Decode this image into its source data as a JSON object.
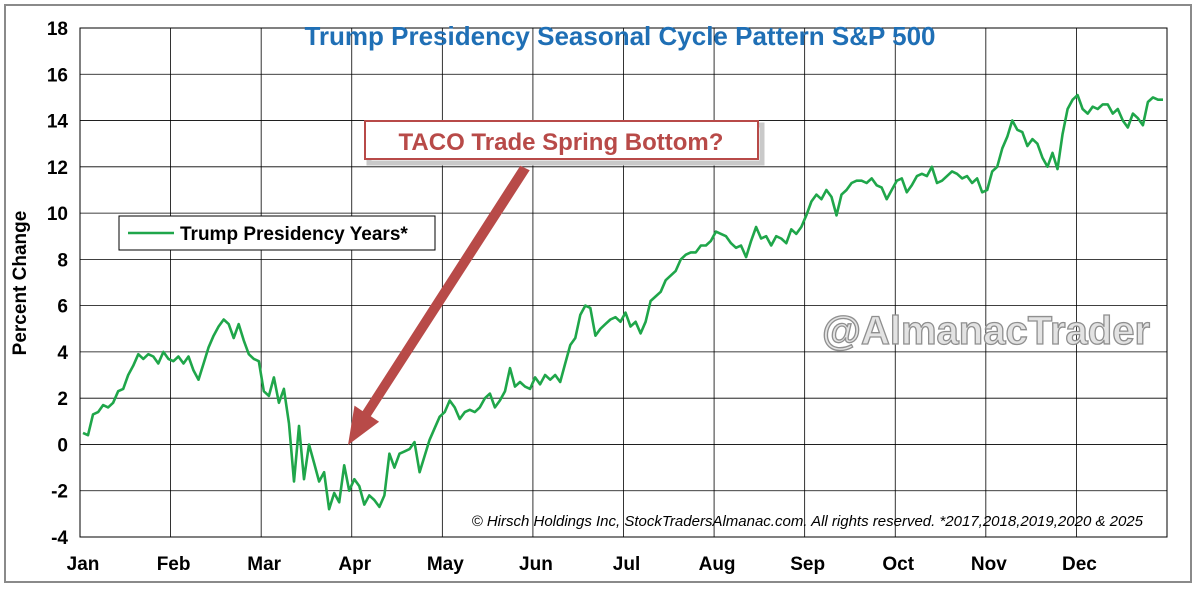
{
  "chart_data": {
    "type": "line",
    "title": "Trump Presidency Seasonal Cycle Pattern S&P 500",
    "ylabel": "Percent Change",
    "xlabel": "",
    "ylim": [
      -4,
      18
    ],
    "yticks": [
      "18",
      "16",
      "14",
      "12",
      "10",
      "8",
      "6",
      "4",
      "2",
      "0",
      "-2",
      "-4"
    ],
    "months": [
      "Jan",
      "Feb",
      "Mar",
      "Apr",
      "May",
      "Jun",
      "Jul",
      "Aug",
      "Sep",
      "Oct",
      "Nov",
      "Dec"
    ],
    "grid": true,
    "legend_position": "upper-left",
    "series": [
      {
        "name": "Trump Presidency Years*",
        "color": "#1fa64a",
        "values": [
          0.5,
          0.4,
          1.3,
          1.4,
          1.7,
          1.6,
          1.8,
          2.3,
          2.4,
          3.0,
          3.4,
          3.9,
          3.7,
          3.9,
          3.8,
          3.5,
          4.0,
          3.7,
          3.6,
          3.8,
          3.5,
          3.8,
          3.2,
          2.8,
          3.5,
          4.2,
          4.7,
          5.1,
          5.4,
          5.2,
          4.6,
          5.2,
          4.5,
          3.9,
          3.7,
          3.6,
          2.3,
          2.1,
          2.9,
          1.8,
          2.4,
          0.9,
          -1.6,
          0.8,
          -1.5,
          0.0,
          -0.8,
          -1.6,
          -1.2,
          -2.8,
          -2.1,
          -2.5,
          -0.9,
          -2.0,
          -1.5,
          -1.8,
          -2.6,
          -2.2,
          -2.4,
          -2.7,
          -2.2,
          -0.4,
          -1.0,
          -0.4,
          -0.3,
          -0.2,
          0.1,
          -1.2,
          -0.5,
          0.2,
          0.7,
          1.2,
          1.4,
          1.9,
          1.6,
          1.1,
          1.4,
          1.5,
          1.4,
          1.6,
          2.0,
          2.2,
          1.6,
          1.9,
          2.3,
          3.3,
          2.5,
          2.7,
          2.5,
          2.4,
          2.9,
          2.6,
          3.0,
          2.8,
          3.0,
          2.7,
          3.5,
          4.3,
          4.6,
          5.6,
          6.0,
          5.9,
          4.7,
          5.0,
          5.2,
          5.4,
          5.5,
          5.3,
          5.7,
          5.1,
          5.3,
          4.8,
          5.3,
          6.2,
          6.4,
          6.6,
          7.1,
          7.3,
          7.5,
          8.0,
          8.2,
          8.3,
          8.3,
          8.6,
          8.6,
          8.8,
          9.2,
          9.1,
          9.0,
          8.7,
          8.5,
          8.6,
          8.1,
          8.8,
          9.4,
          8.9,
          9.0,
          8.6,
          9.0,
          8.9,
          8.7,
          9.3,
          9.1,
          9.4,
          9.9,
          10.5,
          10.8,
          10.6,
          11.0,
          10.7,
          9.9,
          10.8,
          11.0,
          11.3,
          11.4,
          11.4,
          11.3,
          11.5,
          11.2,
          11.1,
          10.6,
          11.0,
          11.4,
          11.5,
          10.9,
          11.2,
          11.6,
          11.7,
          11.6,
          12.0,
          11.3,
          11.4,
          11.6,
          11.8,
          11.7,
          11.5,
          11.6,
          11.3,
          11.5,
          10.9,
          11.0,
          11.8,
          12.0,
          12.8,
          13.3,
          14.0,
          13.6,
          13.5,
          12.9,
          13.2,
          13.0,
          12.4,
          12.0,
          12.6,
          11.9,
          13.4,
          14.5,
          14.9,
          15.1,
          14.5,
          14.3,
          14.6,
          14.5,
          14.7,
          14.7,
          14.3,
          14.5,
          14.0,
          13.7,
          14.3,
          14.1,
          13.8,
          14.8,
          15.0,
          14.9,
          14.9
        ]
      }
    ],
    "annotations": [
      "TACO Trade Spring Bottom?"
    ]
  },
  "watermark": "@AlmanacTrader",
  "copyright": "© Hirsch Holdings Inc, StockTradersAlmanac.com. All rights reserved. *2017,2018,2019,2020 & 2025",
  "colors": {
    "title": "#1f6fb5",
    "line": "#1fa64a",
    "negative_tick": "#c00000",
    "callout": "#b84a48",
    "grid": "#000000"
  }
}
